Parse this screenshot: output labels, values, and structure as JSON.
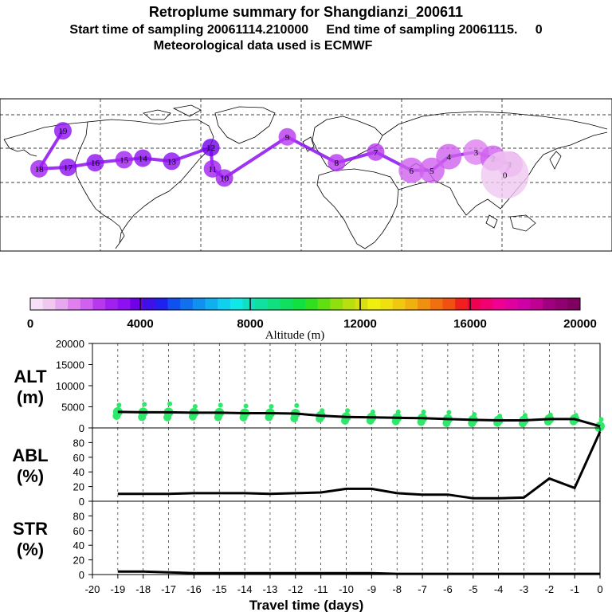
{
  "header": {
    "title": "Retroplume summary for Shangdianzi_200611",
    "line2": "Start time of sampling 20061114.210000     End time of sampling 20061115.     0",
    "line3": "Meteorological data used is ECMWF"
  },
  "colorbar": {
    "xlabel": "Altitude (m)",
    "ticks": [
      "0",
      "4000",
      "8000",
      "12000",
      "16000",
      "20000"
    ],
    "colors": [
      "#f8e0f8",
      "#f0c8f0",
      "#e8a8f0",
      "#e080f0",
      "#d060f0",
      "#b838f0",
      "#a020f0",
      "#8c10f0",
      "#7000e8",
      "#4010e8",
      "#2020f0",
      "#1050f0",
      "#1070f0",
      "#1090f0",
      "#10b0f0",
      "#10d0f0",
      "#10e8e8",
      "#10e0c0",
      "#10e0a0",
      "#10e080",
      "#10e060",
      "#10e040",
      "#30e020",
      "#60e010",
      "#90e010",
      "#b8e010",
      "#d8e010",
      "#f0f010",
      "#f0e010",
      "#f0c810",
      "#f0b010",
      "#f09010",
      "#f07010",
      "#f05010",
      "#f02020",
      "#f00050",
      "#f00070",
      "#f00090",
      "#e000a0",
      "#d000a8",
      "#c00090",
      "#a00080",
      "#900070",
      "#800060"
    ]
  },
  "map": {
    "markers": [
      {
        "label": "19",
        "lon": -143,
        "lat": 69,
        "alt": 3500
      },
      {
        "label": "18",
        "lon": -157,
        "lat": 44,
        "alt": 3000
      },
      {
        "label": "17",
        "lon": -140,
        "lat": 45,
        "alt": 3200
      },
      {
        "label": "16",
        "lon": -124,
        "lat": 48,
        "alt": 3400
      },
      {
        "label": "15",
        "lon": -107,
        "lat": 50,
        "alt": 3100
      },
      {
        "label": "14",
        "lon": -96,
        "lat": 51,
        "alt": 3600
      },
      {
        "label": "13",
        "lon": -79,
        "lat": 49,
        "alt": 3300
      },
      {
        "label": "12",
        "lon": -56,
        "lat": 58,
        "alt": 3800
      },
      {
        "label": "11",
        "lon": -55,
        "lat": 44,
        "alt": 3000
      },
      {
        "label": "10",
        "lon": -48,
        "lat": 38,
        "alt": 2800
      },
      {
        "label": "9",
        "lon": -11,
        "lat": 65,
        "alt": 2500
      },
      {
        "label": "8",
        "lon": 18,
        "lat": 48,
        "alt": 2500
      },
      {
        "label": "7",
        "lon": 41,
        "lat": 55,
        "alt": 2300
      },
      {
        "label": "6",
        "lon": 62,
        "lat": 43,
        "alt": 2100
      },
      {
        "label": "5",
        "lon": 74,
        "lat": 43,
        "alt": 2000
      },
      {
        "label": "4",
        "lon": 84,
        "lat": 52,
        "alt": 1900
      },
      {
        "label": "3",
        "lon": 100,
        "lat": 55,
        "alt": 1800
      },
      {
        "label": "2",
        "lon": 110,
        "lat": 51,
        "alt": 2000
      },
      {
        "label": "1",
        "lon": 120,
        "lat": 47,
        "alt": 1500
      },
      {
        "label": "0",
        "lon": 117,
        "lat": 40,
        "alt": 500
      }
    ]
  },
  "chart_data": [
    {
      "type": "line",
      "panel": "ALT",
      "ylabel": "ALT (m)",
      "ylabel_line1": "ALT",
      "ylabel_line2": "(m)",
      "ylim": [
        0,
        20000
      ],
      "yticks": [
        "20000",
        "15000",
        "10000",
        "5000",
        "0"
      ],
      "x": [
        -19,
        -18,
        -17,
        -16,
        -15,
        -14,
        -13,
        -12,
        -11,
        -10,
        -9,
        -8,
        -7,
        -6,
        -5,
        -4,
        -3,
        -2,
        -1,
        0
      ],
      "values": [
        3800,
        3700,
        3700,
        3600,
        3600,
        3500,
        3500,
        3400,
        2900,
        2600,
        2500,
        2400,
        2300,
        2100,
        1900,
        1800,
        1800,
        2100,
        2100,
        400
      ],
      "scatter_offsets": [
        1600,
        1900,
        2000,
        1500,
        1800,
        1700,
        1600,
        1900,
        1200,
        1500,
        1300,
        1400,
        1500,
        1600,
        1300,
        1000,
        1200,
        1000,
        900,
        1600
      ]
    },
    {
      "type": "line",
      "panel": "ABL",
      "ylabel": "ABL (%)",
      "ylabel_line1": "ABL",
      "ylabel_line2": "(%)",
      "ylim": [
        0,
        100
      ],
      "yticks": [
        "80",
        "60",
        "40",
        "20",
        "0"
      ],
      "x": [
        -19,
        -18,
        -17,
        -16,
        -15,
        -14,
        -13,
        -12,
        -11,
        -10,
        -9,
        -8,
        -7,
        -6,
        -5,
        -4,
        -3,
        -2,
        -1,
        0
      ],
      "values": [
        10,
        10,
        10,
        11,
        11,
        11,
        10,
        11,
        12,
        17,
        17,
        11,
        9,
        9,
        4,
        4,
        5,
        31,
        18,
        95
      ]
    },
    {
      "type": "line",
      "panel": "STR",
      "ylabel": "STR (%)",
      "ylabel_line1": "STR",
      "ylabel_line2": "(%)",
      "ylim": [
        0,
        100
      ],
      "yticks": [
        "80",
        "60",
        "40",
        "20",
        "0"
      ],
      "x": [
        -19,
        -18,
        -17,
        -16,
        -15,
        -14,
        -13,
        -12,
        -11,
        -10,
        -9,
        -8,
        -7,
        -6,
        -5,
        -4,
        -3,
        -2,
        -1,
        0
      ],
      "values": [
        4,
        4,
        3,
        2,
        2,
        2,
        2,
        2,
        2,
        2,
        2,
        1,
        1,
        1,
        1,
        1,
        1,
        1,
        1,
        1
      ],
      "xlabel": "Travel time (days)",
      "xticks": [
        "-20",
        "-19",
        "-18",
        "-17",
        "-16",
        "-15",
        "-14",
        "-13",
        "-12",
        "-11",
        "-10",
        "-9",
        "-8",
        "-7",
        "-6",
        "-5",
        "-4",
        "-3",
        "-2",
        "-1",
        "0"
      ]
    }
  ]
}
